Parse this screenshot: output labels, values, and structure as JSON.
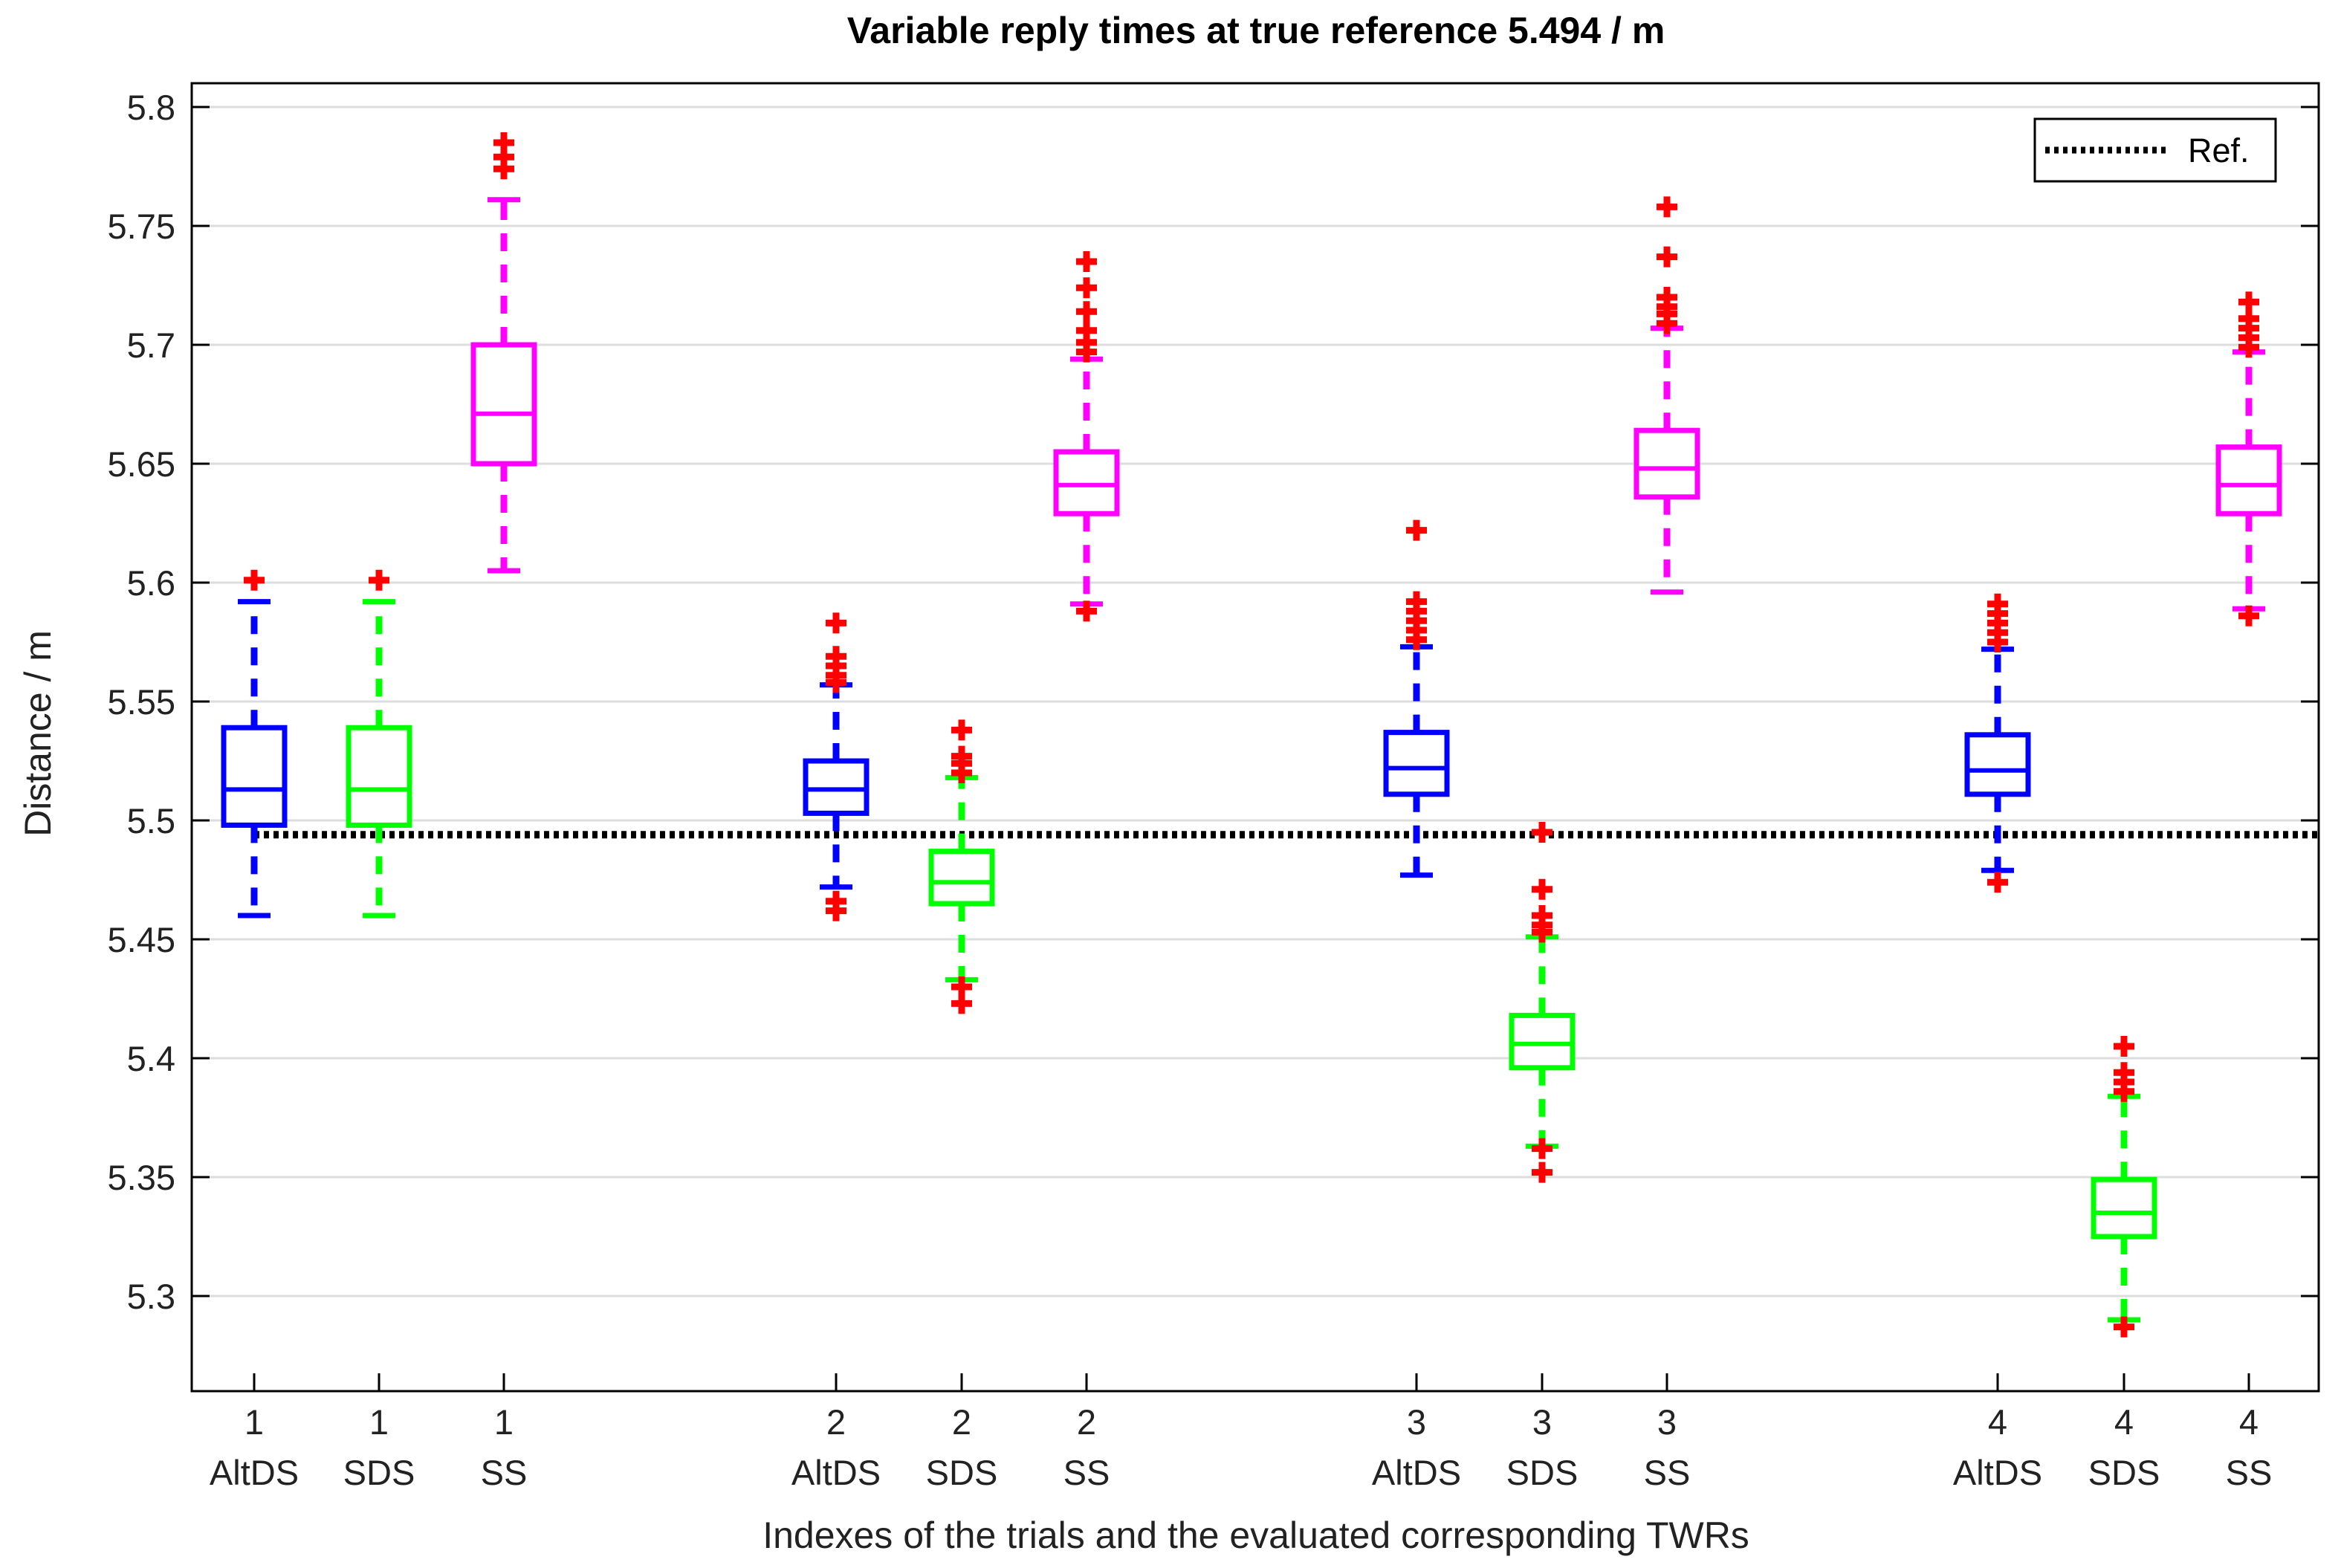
{
  "chart_data": {
    "type": "box",
    "title": "Variable reply times at true reference 5.494 / m",
    "xlabel": "Indexes of the trials and the evaluated corresponding TWRs",
    "ylabel": "Distance / m",
    "ylim": [
      5.26,
      5.81
    ],
    "yticks": [
      "5.3",
      "5.35",
      "5.4",
      "5.45",
      "5.5",
      "5.55",
      "5.6",
      "5.65",
      "5.7",
      "5.75",
      "5.8"
    ],
    "grid": "horizontal",
    "reference": {
      "value": 5.494,
      "label": "Ref.",
      "style": "dotted",
      "color": "#000000"
    },
    "legend": {
      "position": "top-right",
      "entries": [
        "Ref."
      ]
    },
    "series_colors": {
      "AltDS": "#0000ff",
      "SDS": "#00ff00",
      "SS": "#ff00ff",
      "outlier": "#ff0000"
    },
    "boxes": [
      {
        "trial": "1",
        "method": "AltDS",
        "q1": 5.498,
        "median": 5.513,
        "q3": 5.539,
        "whisker_low": 5.46,
        "whisker_high": 5.592,
        "outliers": [
          5.601
        ]
      },
      {
        "trial": "1",
        "method": "SDS",
        "q1": 5.498,
        "median": 5.513,
        "q3": 5.539,
        "whisker_low": 5.46,
        "whisker_high": 5.592,
        "outliers": [
          5.601
        ]
      },
      {
        "trial": "1",
        "method": "SS",
        "q1": 5.65,
        "median": 5.671,
        "q3": 5.7,
        "whisker_low": 5.605,
        "whisker_high": 5.761,
        "outliers": [
          5.774,
          5.779,
          5.785
        ]
      },
      {
        "trial": "2",
        "method": "AltDS",
        "q1": 5.503,
        "median": 5.513,
        "q3": 5.525,
        "whisker_low": 5.472,
        "whisker_high": 5.557,
        "outliers": [
          5.462,
          5.466,
          5.558,
          5.561,
          5.565,
          5.569,
          5.583
        ]
      },
      {
        "trial": "2",
        "method": "SDS",
        "q1": 5.465,
        "median": 5.474,
        "q3": 5.487,
        "whisker_low": 5.433,
        "whisker_high": 5.518,
        "outliers": [
          5.423,
          5.43,
          5.52,
          5.524,
          5.527,
          5.538
        ]
      },
      {
        "trial": "2",
        "method": "SS",
        "q1": 5.629,
        "median": 5.641,
        "q3": 5.655,
        "whisker_low": 5.591,
        "whisker_high": 5.694,
        "outliers": [
          5.588,
          5.697,
          5.701,
          5.706,
          5.714,
          5.724,
          5.735
        ]
      },
      {
        "trial": "3",
        "method": "AltDS",
        "q1": 5.511,
        "median": 5.522,
        "q3": 5.537,
        "whisker_low": 5.477,
        "whisker_high": 5.573,
        "outliers": [
          5.576,
          5.58,
          5.584,
          5.588,
          5.592,
          5.622
        ]
      },
      {
        "trial": "3",
        "method": "SDS",
        "q1": 5.396,
        "median": 5.406,
        "q3": 5.418,
        "whisker_low": 5.363,
        "whisker_high": 5.451,
        "outliers": [
          5.352,
          5.362,
          5.453,
          5.456,
          5.46,
          5.471,
          5.495
        ]
      },
      {
        "trial": "3",
        "method": "SS",
        "q1": 5.636,
        "median": 5.648,
        "q3": 5.664,
        "whisker_low": 5.596,
        "whisker_high": 5.707,
        "outliers": [
          5.709,
          5.713,
          5.716,
          5.72,
          5.737,
          5.758
        ]
      },
      {
        "trial": "4",
        "method": "AltDS",
        "q1": 5.511,
        "median": 5.521,
        "q3": 5.536,
        "whisker_low": 5.479,
        "whisker_high": 5.572,
        "outliers": [
          5.474,
          5.575,
          5.579,
          5.583,
          5.587,
          5.591
        ]
      },
      {
        "trial": "4",
        "method": "SDS",
        "q1": 5.325,
        "median": 5.335,
        "q3": 5.349,
        "whisker_low": 5.29,
        "whisker_high": 5.384,
        "outliers": [
          5.287,
          5.386,
          5.39,
          5.394,
          5.405
        ]
      },
      {
        "trial": "4",
        "method": "SS",
        "q1": 5.629,
        "median": 5.641,
        "q3": 5.657,
        "whisker_low": 5.589,
        "whisker_high": 5.697,
        "outliers": [
          5.586,
          5.699,
          5.703,
          5.707,
          5.711,
          5.718
        ]
      }
    ]
  }
}
